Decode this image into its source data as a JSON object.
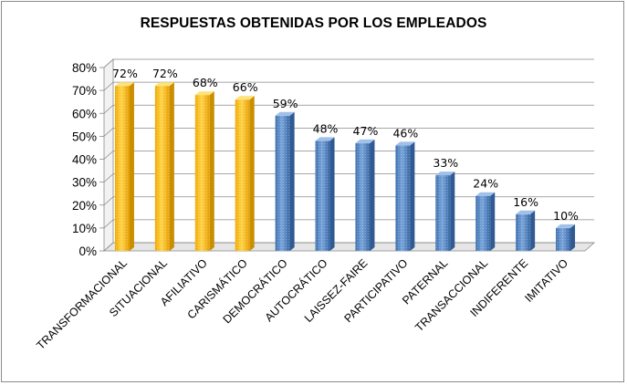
{
  "chart_data": {
    "type": "bar",
    "title": "RESPUESTAS OBTENIDAS POR LOS EMPLEADOS",
    "xlabel": "",
    "ylabel": "",
    "categories": [
      "TRANSFORMACIONAL",
      "SITUACIONAL",
      "AFILIATIVO",
      "CARISMÁTICO",
      "DEMOCRÁTICO",
      "AUTOCRÁTICO",
      "LAISSEZ-FAIRE",
      "PARTICIPATIVO",
      "PATERNAL",
      "TRANSACCIONAL",
      "INDIFERENTE",
      "IMITATIVO"
    ],
    "values": [
      72,
      72,
      68,
      66,
      59,
      48,
      47,
      46,
      33,
      24,
      16,
      10
    ],
    "data_labels": [
      "72%",
      "72%",
      "68%",
      "66%",
      "59%",
      "48%",
      "47%",
      "46%",
      "33%",
      "24%",
      "16%",
      "10%"
    ],
    "bar_colors": [
      "#f5b800",
      "#f5b800",
      "#f5b800",
      "#f5b800",
      "#4f81bd",
      "#4f81bd",
      "#4f81bd",
      "#4f81bd",
      "#4f81bd",
      "#4f81bd",
      "#4f81bd",
      "#4f81bd"
    ],
    "y_ticks": [
      "0%",
      "10%",
      "20%",
      "30%",
      "40%",
      "50%",
      "60%",
      "70%",
      "80%"
    ],
    "ylim": [
      0,
      80
    ],
    "grid": true,
    "legend": "none",
    "style": "3d-cylinder"
  }
}
